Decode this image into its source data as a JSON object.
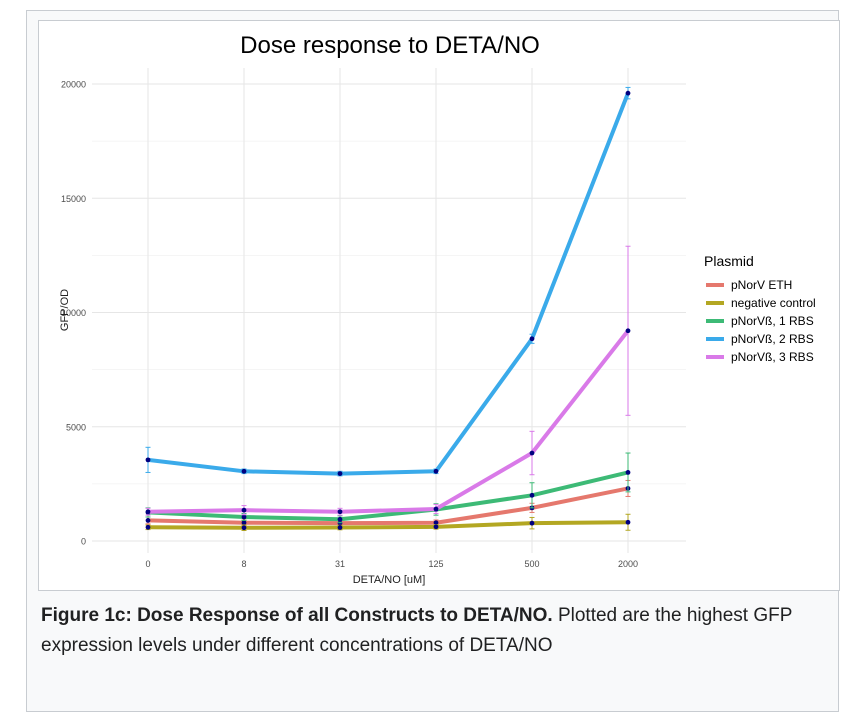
{
  "chart_data": {
    "type": "line",
    "title": "Dose response to DETA/NO",
    "xlabel": "DETA/NO [uM]",
    "ylabel": "GFP/OD",
    "categories": [
      "0",
      "8",
      "31",
      "125",
      "500",
      "2000"
    ],
    "ylim": [
      0,
      20000
    ],
    "yticks": [
      0,
      5000,
      10000,
      15000,
      20000
    ],
    "grid": true,
    "legend": {
      "title": "Plasmid",
      "position": "right"
    },
    "series": [
      {
        "name": "pNorV ETH",
        "color": "#e5786d",
        "values": [
          900,
          800,
          780,
          800,
          1450,
          2300
        ],
        "errors": [
          150,
          120,
          100,
          120,
          200,
          350
        ]
      },
      {
        "name": "negative control",
        "color": "#b3a722",
        "values": [
          600,
          580,
          590,
          620,
          780,
          820
        ],
        "errors": [
          100,
          120,
          100,
          100,
          250,
          350
        ]
      },
      {
        "name": "pNorVß, 1 RBS",
        "color": "#3dba76",
        "values": [
          1250,
          1050,
          950,
          1380,
          2000,
          3000
        ],
        "errors": [
          200,
          150,
          150,
          250,
          550,
          850
        ]
      },
      {
        "name": "pNorVß, 2 RBS",
        "color": "#3aaaea",
        "values": [
          3550,
          3050,
          2950,
          3050,
          8850,
          19600
        ],
        "errors": [
          550,
          100,
          100,
          100,
          200,
          250
        ]
      },
      {
        "name": "pNorVß, 3 RBS",
        "color": "#d97ae8",
        "values": [
          1280,
          1350,
          1280,
          1400,
          3850,
          9200
        ],
        "errors": [
          150,
          200,
          150,
          200,
          950,
          3700
        ]
      }
    ]
  },
  "caption": {
    "bold": "Figure 1c: Dose Response of all Constructs to DETA/NO.",
    "text": " Plotted are the highest GFP expression levels under different concentrations of DETA/NO"
  }
}
